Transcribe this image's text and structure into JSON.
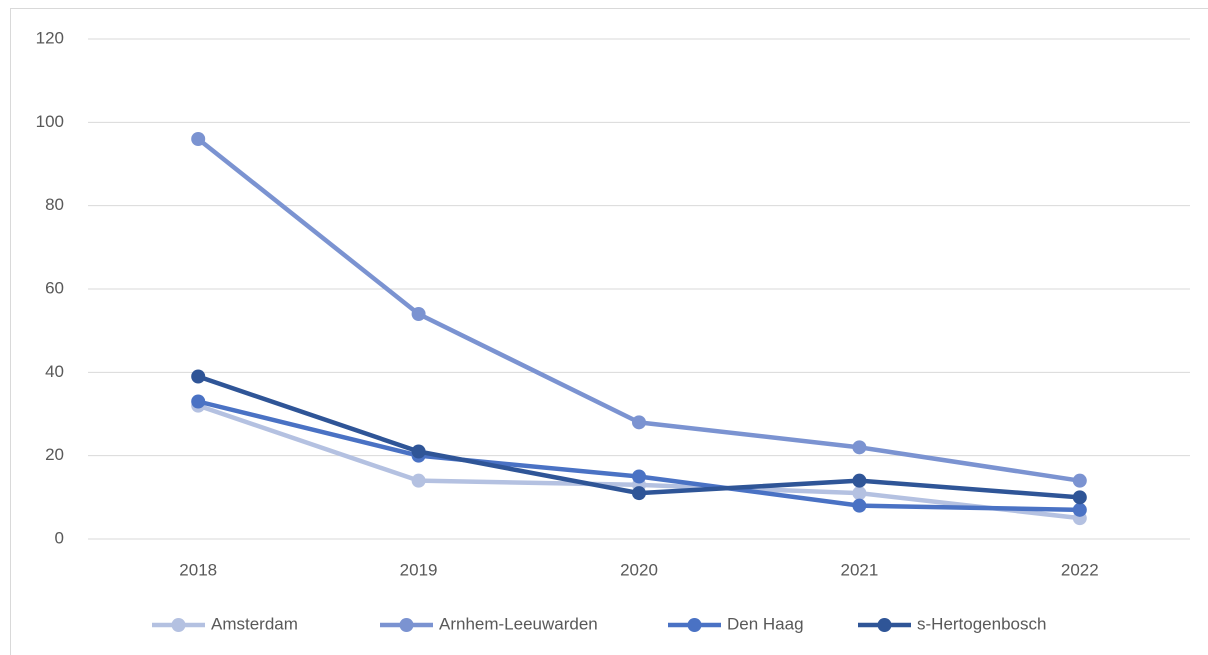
{
  "chart_data": {
    "type": "line",
    "categories": [
      "2018",
      "2019",
      "2020",
      "2021",
      "2022"
    ],
    "series": [
      {
        "name": "Amsterdam",
        "color": "#b4c1e1",
        "values": [
          32,
          14,
          13,
          11,
          5
        ]
      },
      {
        "name": "Arnhem-Leeuwarden",
        "color": "#7b93d1",
        "values": [
          96,
          54,
          28,
          22,
          14
        ]
      },
      {
        "name": "Den Haag",
        "color": "#4a72c4",
        "values": [
          33,
          20,
          15,
          8,
          7
        ]
      },
      {
        "name": "s-Hertogenbosch",
        "color": "#2f5597",
        "values": [
          39,
          21,
          11,
          14,
          10
        ]
      }
    ],
    "ylim": [
      0,
      120
    ],
    "yticks": [
      0,
      20,
      40,
      60,
      80,
      100,
      120
    ],
    "grid": true,
    "legend": "bottom"
  }
}
